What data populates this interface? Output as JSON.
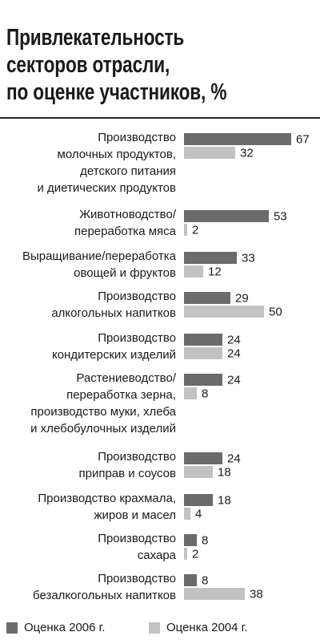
{
  "title_lines": [
    "Привлекательность",
    "секторов отрасли,",
    "по оценке участников, %"
  ],
  "colors": {
    "series_2006": "#6b6b6b",
    "series_2004": "#c2c2c2",
    "rule": "#222222"
  },
  "chart_data": {
    "type": "bar",
    "orientation": "horizontal",
    "title": "Привлекательность секторов отрасли, по оценке участников, %",
    "categories": [
      "Производство молочных продуктов, детского питания и диетических продуктов",
      "Животноводство/ переработка мяса",
      "Выращивание/переработка овощей и фруктов",
      "Производство алкогольных напитков",
      "Производство кондитерских изделий",
      "Растениеводство/ переработка зерна, производство муки, хлеба и хлебобулочных изделий",
      "Производство приправ и соусов",
      "Производство крахмала, жиров и масел",
      "Производство сахара",
      "Производство безалкогольных напитков"
    ],
    "category_lines": [
      [
        "Производство",
        "молочных продуктов,",
        "детского питания",
        "и диетических продуктов"
      ],
      [
        "Животноводство/",
        "переработка мяса"
      ],
      [
        "Выращивание/переработка",
        "овощей и фруктов"
      ],
      [
        "Производство",
        "алкогольных напитков"
      ],
      [
        "Производство",
        "кондитерских изделий"
      ],
      [
        "Растениеводство/",
        "переработка зерна,",
        "производство муки, хлеба",
        "и хлебобулочных изделий"
      ],
      [
        "Производство",
        "приправ и соусов"
      ],
      [
        "Производство крахмала,",
        "жиров и масел"
      ],
      [
        "Производство",
        "сахара"
      ],
      [
        "Производство",
        "безалкогольных напитков"
      ]
    ],
    "series": [
      {
        "name": "Оценка 2006 г.",
        "values": [
          67,
          53,
          33,
          29,
          24,
          24,
          24,
          18,
          8,
          8
        ]
      },
      {
        "name": "Оценка 2004 г.",
        "values": [
          32,
          2,
          12,
          50,
          24,
          8,
          18,
          4,
          2,
          38
        ]
      }
    ],
    "xlim": [
      0,
      67
    ],
    "data_labels": true,
    "legend_position": "bottom"
  },
  "legend": [
    {
      "label": "Оценка 2006 г.",
      "color": "#6b6b6b"
    },
    {
      "label": "Оценка 2004 г.",
      "color": "#c2c2c2"
    }
  ]
}
